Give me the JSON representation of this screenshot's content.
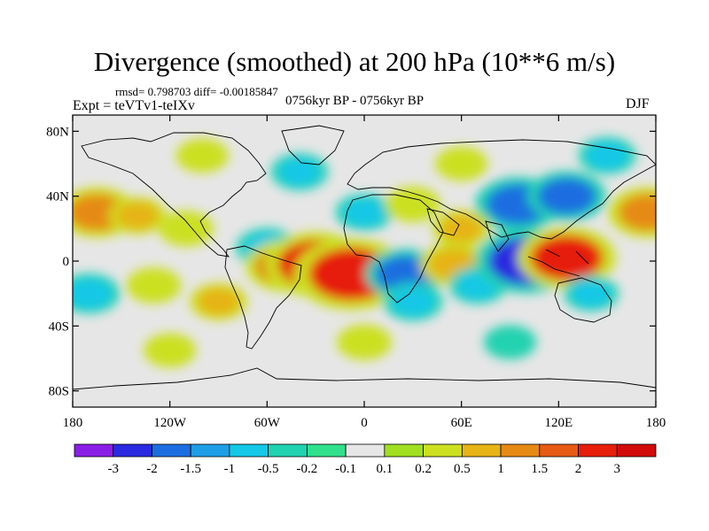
{
  "title": "Divergence (smoothed) at 200 hPa (10**6 m/s)",
  "stats_text": "rmsd= 0.798703 diff= -0.00185847",
  "expt_text": "Expt = teVTv1-teIXv",
  "period_text": "0756kyr BP - 0756kyr BP",
  "season_text": "DJF",
  "y_ticks": [
    {
      "label": "80N",
      "lat": 80
    },
    {
      "label": "40N",
      "lat": 40
    },
    {
      "label": "0",
      "lat": 0
    },
    {
      "label": "40S",
      "lat": -40
    },
    {
      "label": "80S",
      "lat": -80
    }
  ],
  "x_ticks": [
    {
      "label": "180",
      "lon": -180
    },
    {
      "label": "120W",
      "lon": -120
    },
    {
      "label": "60W",
      "lon": -60
    },
    {
      "label": "0",
      "lon": 0
    },
    {
      "label": "60E",
      "lon": 60
    },
    {
      "label": "120E",
      "lon": 120
    },
    {
      "label": "180",
      "lon": 180
    }
  ],
  "colorbar": {
    "labels": [
      "-3",
      "-2",
      "-1.5",
      "-1",
      "-0.5",
      "-0.2",
      "-0.1",
      "0.1",
      "0.2",
      "0.5",
      "1",
      "1.5",
      "2",
      "3"
    ],
    "colors": [
      "#8a1ee6",
      "#2a2ae0",
      "#1c6ee0",
      "#1e9ee6",
      "#14c8e6",
      "#20d2b0",
      "#30e08a",
      "#e6e6e6",
      "#a0e020",
      "#cce020",
      "#e6b414",
      "#e68a14",
      "#e65a14",
      "#e61e0a",
      "#d20a0a"
    ]
  },
  "anomalies": [
    {
      "lon": -165,
      "lat": 30,
      "value": 1.5
    },
    {
      "lon": -140,
      "lat": 28,
      "value": 0.6
    },
    {
      "lon": -110,
      "lat": 20,
      "value": 0.5
    },
    {
      "lon": -60,
      "lat": 8,
      "value": -0.8
    },
    {
      "lon": -48,
      "lat": -3,
      "value": 1.6
    },
    {
      "lon": -30,
      "lat": -2,
      "value": 2.5
    },
    {
      "lon": -8,
      "lat": -8,
      "value": 3.0
    },
    {
      "lon": 25,
      "lat": -8,
      "value": -1.5
    },
    {
      "lon": 30,
      "lat": -25,
      "value": -0.7
    },
    {
      "lon": 55,
      "lat": -2,
      "value": 1.0
    },
    {
      "lon": 70,
      "lat": -15,
      "value": -0.6
    },
    {
      "lon": 100,
      "lat": 0,
      "value": -2.5
    },
    {
      "lon": 125,
      "lat": 2,
      "value": 2.3
    },
    {
      "lon": 140,
      "lat": -20,
      "value": -0.5
    },
    {
      "lon": 95,
      "lat": 35,
      "value": -1.8
    },
    {
      "lon": 125,
      "lat": 40,
      "value": -1.5
    },
    {
      "lon": 175,
      "lat": 30,
      "value": 1.5
    },
    {
      "lon": -170,
      "lat": -20,
      "value": -0.8
    },
    {
      "lon": -130,
      "lat": -15,
      "value": 0.5
    },
    {
      "lon": -90,
      "lat": -25,
      "value": 0.6
    },
    {
      "lon": 0,
      "lat": 30,
      "value": -0.6
    },
    {
      "lon": 30,
      "lat": 35,
      "value": 0.5
    },
    {
      "lon": -40,
      "lat": 55,
      "value": -0.6
    },
    {
      "lon": 60,
      "lat": 60,
      "value": 0.4
    },
    {
      "lon": 150,
      "lat": 65,
      "value": -0.6
    },
    {
      "lon": -100,
      "lat": 65,
      "value": 0.4
    },
    {
      "lon": 0,
      "lat": -50,
      "value": 0.5
    },
    {
      "lon": 90,
      "lat": -50,
      "value": -0.4
    },
    {
      "lon": -120,
      "lat": -55,
      "value": 0.4
    },
    {
      "lon": 60,
      "lat": 20,
      "value": 0.6
    }
  ]
}
